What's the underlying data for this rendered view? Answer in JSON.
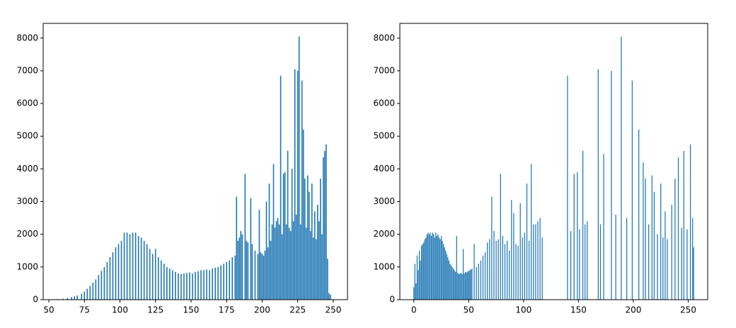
{
  "chart_data": [
    {
      "type": "histogram",
      "color": "#1f77b4",
      "x": [
        56,
        60,
        63,
        66,
        68,
        70,
        73,
        75,
        77,
        79,
        81,
        83,
        85,
        87,
        89,
        91,
        93,
        95,
        97,
        99,
        101,
        103,
        105,
        107,
        109,
        111,
        113,
        115,
        117,
        119,
        121,
        123,
        125,
        127,
        129,
        131,
        133,
        135,
        137,
        139,
        141,
        143,
        145,
        147,
        149,
        151,
        153,
        155,
        157,
        159,
        161,
        163,
        165,
        167,
        169,
        171,
        173,
        175,
        177,
        179,
        181,
        182,
        183,
        184,
        185,
        186,
        188,
        189,
        190,
        192,
        193,
        195,
        197,
        198,
        199,
        200,
        201,
        202,
        203,
        204,
        205,
        206,
        207,
        208,
        209,
        210,
        211,
        212,
        213,
        214,
        215,
        216,
        217,
        218,
        219,
        220,
        221,
        222,
        223,
        224,
        225,
        226,
        227,
        228,
        229,
        230,
        231,
        232,
        233,
        234,
        235,
        236,
        237,
        238,
        239,
        240,
        241,
        242,
        243,
        244,
        245,
        246,
        247,
        248
      ],
      "values": [
        20,
        30,
        50,
        80,
        100,
        130,
        180,
        250,
        330,
        420,
        520,
        620,
        750,
        880,
        1000,
        1150,
        1300,
        1450,
        1600,
        1700,
        1800,
        2050,
        2050,
        2000,
        2050,
        2050,
        1950,
        1900,
        1800,
        1700,
        1550,
        1400,
        1550,
        1300,
        1200,
        1100,
        1000,
        950,
        900,
        850,
        800,
        780,
        800,
        820,
        830,
        800,
        850,
        870,
        900,
        900,
        920,
        900,
        950,
        980,
        1000,
        1050,
        1100,
        1150,
        1200,
        1300,
        1350,
        3150,
        1800,
        1900,
        2100,
        2000,
        3850,
        1800,
        1750,
        3100,
        1700,
        1500,
        1400,
        2750,
        1450,
        1400,
        1350,
        1500,
        3000,
        1600,
        3550,
        1800,
        2300,
        4150,
        2200,
        2400,
        2500,
        2300,
        6850,
        2000,
        3850,
        3900,
        2300,
        4550,
        2200,
        2100,
        4000,
        2400,
        7050,
        2600,
        7000,
        8050,
        2300,
        6700,
        5200,
        3700,
        2200,
        3800,
        3300,
        2100,
        3550,
        1900,
        2700,
        1850,
        2900,
        2400,
        3700,
        2000,
        4350,
        4550,
        4750,
        1250,
        200,
        150
      ],
      "xlim": [
        46,
        260
      ],
      "xticks": [
        50,
        75,
        100,
        125,
        150,
        175,
        200,
        225,
        250
      ],
      "ylim": [
        0,
        8450
      ],
      "yticks": [
        0,
        1000,
        2000,
        3000,
        4000,
        5000,
        6000,
        7000,
        8000
      ]
    },
    {
      "type": "histogram",
      "color": "#1f77b4",
      "x": [
        0,
        1,
        2,
        3,
        4,
        5,
        6,
        7,
        8,
        9,
        10,
        11,
        12,
        13,
        14,
        15,
        16,
        17,
        18,
        19,
        20,
        21,
        22,
        23,
        24,
        25,
        26,
        27,
        28,
        29,
        30,
        31,
        32,
        33,
        34,
        35,
        36,
        37,
        38,
        39,
        40,
        41,
        42,
        43,
        44,
        45,
        46,
        47,
        48,
        49,
        50,
        51,
        52,
        53,
        55,
        57,
        59,
        61,
        63,
        65,
        67,
        69,
        71,
        73,
        75,
        77,
        79,
        81,
        83,
        85,
        87,
        89,
        91,
        93,
        95,
        97,
        99,
        101,
        103,
        105,
        107,
        109,
        111,
        113,
        115,
        117,
        140,
        143,
        146,
        149,
        151,
        154,
        156,
        158,
        168,
        170,
        173,
        180,
        184,
        189,
        194,
        199,
        205,
        209,
        211,
        214,
        217,
        219,
        222,
        225,
        227,
        229,
        231,
        235,
        238,
        241,
        244,
        246,
        249,
        252,
        254,
        255
      ],
      "values": [
        380,
        1100,
        500,
        1350,
        900,
        1500,
        1200,
        1650,
        1700,
        1750,
        1850,
        1900,
        2000,
        2050,
        2000,
        2050,
        1950,
        2050,
        2000,
        1900,
        2050,
        1950,
        2000,
        1900,
        1850,
        1950,
        1800,
        1700,
        1600,
        1500,
        1400,
        1300,
        1200,
        1100,
        1050,
        1000,
        950,
        900,
        850,
        1950,
        820,
        780,
        800,
        820,
        780,
        1550,
        800,
        850,
        830,
        860,
        880,
        900,
        920,
        950,
        1700,
        1000,
        1100,
        1200,
        1350,
        1450,
        1750,
        1850,
        3150,
        2100,
        1800,
        1850,
        3850,
        1950,
        1700,
        1800,
        1500,
        3050,
        2650,
        1700,
        1650,
        2950,
        1900,
        2050,
        3550,
        1800,
        4150,
        2300,
        2300,
        2400,
        2500,
        1900,
        6850,
        2100,
        3850,
        3900,
        2150,
        4550,
        2300,
        2400,
        7050,
        2300,
        4450,
        7000,
        2600,
        8050,
        2500,
        6700,
        5200,
        4200,
        3700,
        2300,
        3800,
        3300,
        2000,
        3550,
        1900,
        2700,
        1850,
        2900,
        3700,
        4350,
        2200,
        4550,
        2150,
        4750,
        2500,
        1600
      ],
      "xlim": [
        -12.75,
        267.75
      ],
      "xticks": [
        0,
        50,
        100,
        150,
        200,
        250
      ],
      "ylim": [
        0,
        8450
      ],
      "yticks": [
        0,
        1000,
        2000,
        3000,
        4000,
        5000,
        6000,
        7000,
        8000
      ]
    }
  ]
}
